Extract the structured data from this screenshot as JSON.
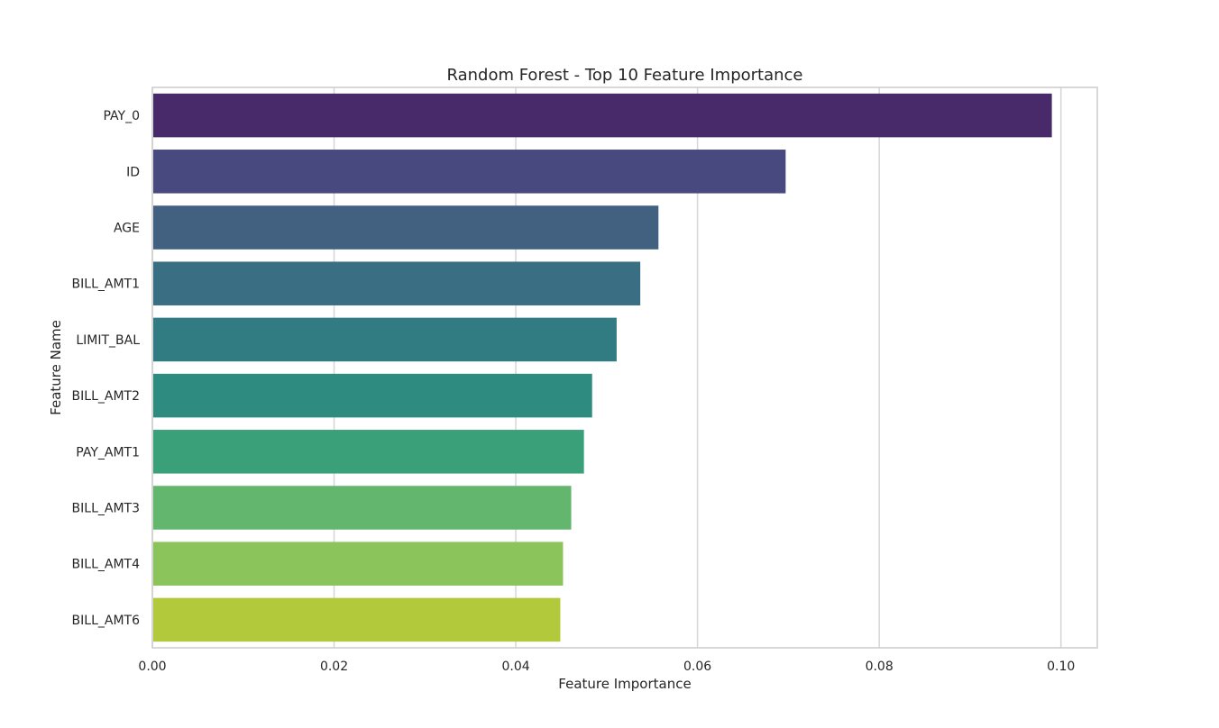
{
  "chart_data": {
    "type": "bar",
    "orientation": "horizontal",
    "title": "Random Forest - Top 10 Feature Importance",
    "xlabel": "Feature Importance",
    "ylabel": "Feature Name",
    "categories": [
      "PAY_0",
      "ID",
      "AGE",
      "BILL_AMT1",
      "LIMIT_BAL",
      "BILL_AMT2",
      "PAY_AMT1",
      "BILL_AMT3",
      "BILL_AMT4",
      "BILL_AMT6"
    ],
    "values": [
      0.099,
      0.0697,
      0.0557,
      0.0537,
      0.0511,
      0.0484,
      0.0475,
      0.0461,
      0.0452,
      0.0449
    ],
    "bar_colors": [
      "#482a6b",
      "#48497e",
      "#42607f",
      "#3a6e82",
      "#317b82",
      "#2e8b7f",
      "#3aa07a",
      "#62b66e",
      "#8bc45a",
      "#b2c93c"
    ],
    "xlim": [
      0.0,
      0.104
    ],
    "xticks": [
      0.0,
      0.02,
      0.04,
      0.06,
      0.08,
      0.1
    ],
    "xtick_labels": [
      "0.00",
      "0.02",
      "0.04",
      "0.06",
      "0.08",
      "0.10"
    ],
    "grid": true
  }
}
